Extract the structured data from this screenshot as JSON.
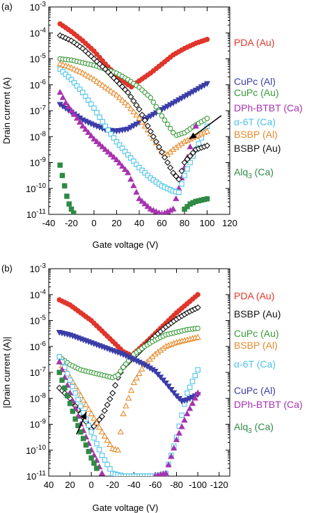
{
  "chart_data": [
    {
      "panel_label": "(a)",
      "type": "scatter",
      "xlabel": "Gate voltage (V)",
      "ylabel": "Drain current (A)",
      "xlim": [
        -40,
        120
      ],
      "xticks": [
        -40,
        -20,
        0,
        20,
        40,
        60,
        80,
        100,
        120
      ],
      "xtick_labels": [
        "-40",
        "-20",
        "0",
        "20",
        "40",
        "60",
        "80",
        "100",
        "120"
      ],
      "ylim_log10": [
        -11,
        -3
      ],
      "ytick_labels": [
        {
          "base": "10",
          "exp": "-3"
        },
        {
          "base": "10",
          "exp": "-4"
        },
        {
          "base": "10",
          "exp": "-5"
        },
        {
          "base": "10",
          "exp": "-6"
        },
        {
          "base": "10",
          "exp": "-7"
        },
        {
          "base": "10",
          "exp": "-8"
        },
        {
          "base": "10",
          "exp": "-9"
        },
        {
          "base": "10",
          "exp": "-10"
        },
        {
          "base": "10",
          "exp": "-11"
        }
      ],
      "series": [
        {
          "name": "PDA (Au)",
          "color": "#e0362b",
          "marker": "circle-filled",
          "x": [
            -30,
            -20,
            -10,
            0,
            10,
            20,
            30,
            33,
            40,
            50,
            60,
            70,
            80,
            90,
            100
          ],
          "log10_y": [
            -3.65,
            -3.95,
            -4.3,
            -4.7,
            -5.2,
            -5.65,
            -6.0,
            -6.08,
            -5.85,
            -5.55,
            -5.2,
            -4.85,
            -4.6,
            -4.4,
            -4.25
          ]
        },
        {
          "name": "CuPc (Al)",
          "color": "#3a3da8",
          "marker": "triangle-down-filled",
          "x": [
            -30,
            -20,
            -10,
            0,
            10,
            20,
            30,
            40,
            50,
            60,
            70,
            80,
            90,
            100
          ],
          "log10_y": [
            -6.75,
            -7.05,
            -7.35,
            -7.55,
            -7.72,
            -7.78,
            -7.7,
            -7.45,
            -7.2,
            -6.95,
            -6.7,
            -6.45,
            -6.2,
            -5.95
          ]
        },
        {
          "name": "CuPc (Au)",
          "color": "#3a9a3a",
          "marker": "circle-open",
          "x": [
            -30,
            -20,
            -10,
            0,
            10,
            20,
            30,
            40,
            50,
            60,
            70,
            73,
            80,
            90,
            100
          ],
          "log10_y": [
            -5.0,
            -5.05,
            -5.15,
            -5.25,
            -5.4,
            -5.55,
            -5.8,
            -6.1,
            -6.5,
            -7.2,
            -7.85,
            -7.95,
            -7.85,
            -7.55,
            -7.3
          ]
        },
        {
          "name": "DPh-BTBT (Ca)",
          "color": "#a832b0",
          "marker": "triangle-up-filled",
          "x": [
            -30,
            -25,
            -20,
            -10,
            0,
            10,
            20,
            30,
            40,
            50,
            60,
            70,
            80,
            90
          ],
          "log10_y": [
            -6.3,
            -6.7,
            -7.0,
            -7.6,
            -8.1,
            -8.5,
            -8.9,
            -9.4,
            -10.4,
            -10.8,
            -11.0,
            -10.8,
            -9.2,
            -7.6
          ]
        },
        {
          "name": "α-6T (Ca)",
          "color": "#4cc3e8",
          "marker": "square-open",
          "x": [
            -30,
            -20,
            -10,
            0,
            10,
            20,
            30,
            40,
            50,
            60,
            70,
            75,
            80,
            90,
            100
          ],
          "log10_y": [
            -5.4,
            -5.8,
            -6.3,
            -6.9,
            -7.6,
            -8.2,
            -8.7,
            -9.2,
            -9.6,
            -9.9,
            -10.1,
            -10.15,
            -9.5,
            -8.5,
            -7.6
          ]
        },
        {
          "name": "BSBP (Al)",
          "color": "#e58a2a",
          "marker": "triangle-up-open",
          "x": [
            -30,
            -20,
            -10,
            0,
            10,
            20,
            30,
            40,
            50,
            60,
            65,
            70,
            80,
            90,
            100
          ],
          "log10_y": [
            -5.2,
            -5.35,
            -5.55,
            -5.8,
            -6.1,
            -6.4,
            -6.8,
            -7.3,
            -7.9,
            -8.6,
            -8.7,
            -8.5,
            -8.2,
            -8.0,
            -7.8
          ]
        },
        {
          "name": "BSBP (Au)",
          "color": "#111111",
          "marker": "diamond-open",
          "x": [
            -30,
            -20,
            -10,
            0,
            10,
            20,
            30,
            40,
            50,
            60,
            70,
            75,
            80,
            90,
            100
          ],
          "log10_y": [
            -4.1,
            -4.3,
            -4.6,
            -5.0,
            -5.4,
            -5.85,
            -6.3,
            -6.95,
            -7.8,
            -8.6,
            -9.4,
            -9.65,
            -9.0,
            -8.5,
            -8.35
          ]
        },
        {
          "name": "Alq",
          "name_sub": "3",
          "name_tail": " (Ca)",
          "color": "#2f8a45",
          "marker": "square-filled",
          "x": [
            -30,
            -28,
            -26,
            -24,
            -22,
            -20,
            -18,
            80,
            85,
            90,
            95,
            100
          ],
          "log10_y": [
            -9.1,
            -9.5,
            -9.9,
            -10.3,
            -10.6,
            -10.8,
            -10.95,
            -10.8,
            -10.6,
            -10.5,
            -10.45,
            -10.4
          ]
        }
      ],
      "annotation": {
        "type": "arrow",
        "points_to": "CuPc (Au)"
      }
    },
    {
      "panel_label": "(b)",
      "type": "scatter",
      "xlabel": "Gate voltage (V)",
      "ylabel": "|Drain current (A)|",
      "xlim": [
        40,
        -130
      ],
      "xticks": [
        40,
        20,
        0,
        -20,
        -40,
        -60,
        -80,
        -100,
        -120
      ],
      "xtick_labels": [
        "40",
        "20",
        "0",
        "-20",
        "-40",
        "-60",
        "-80",
        "-100",
        "-120"
      ],
      "ylim_log10": [
        -11,
        -3
      ],
      "ytick_labels": [
        {
          "base": "10",
          "exp": "-3"
        },
        {
          "base": "10",
          "exp": "-4"
        },
        {
          "base": "10",
          "exp": "-5"
        },
        {
          "base": "10",
          "exp": "-6"
        },
        {
          "base": "10",
          "exp": "-7"
        },
        {
          "base": "10",
          "exp": "-8"
        },
        {
          "base": "10",
          "exp": "-9"
        },
        {
          "base": "10",
          "exp": "-10"
        },
        {
          "base": "10",
          "exp": "-11"
        }
      ],
      "series": [
        {
          "name": "PDA (Au)",
          "color": "#e0362b",
          "marker": "circle-filled",
          "x": [
            30,
            20,
            10,
            0,
            -10,
            -20,
            -30,
            -38,
            -50,
            -60,
            -70,
            -80,
            -90,
            -100
          ],
          "log10_y": [
            -4.2,
            -4.4,
            -4.7,
            -5.0,
            -5.4,
            -5.8,
            -6.2,
            -6.35,
            -5.9,
            -5.5,
            -5.1,
            -4.7,
            -4.35,
            -4.0
          ]
        },
        {
          "name": "BSBP (Au)",
          "color": "#111111",
          "marker": "diamond-open",
          "x": [
            30,
            25,
            20,
            15,
            10,
            5,
            0,
            -10,
            -20,
            -25,
            -30,
            -40,
            -50,
            -60,
            -70,
            -80,
            -90,
            -100
          ],
          "log10_y": [
            -7.6,
            -7.8,
            -8.0,
            -8.3,
            -8.6,
            -8.9,
            -9.2,
            -8.7,
            -7.8,
            -7.2,
            -6.8,
            -6.4,
            -6.0,
            -5.6,
            -5.25,
            -4.95,
            -4.7,
            -4.5
          ]
        },
        {
          "name": "CuPc (Au)",
          "color": "#3a9a3a",
          "marker": "circle-open",
          "x": [
            30,
            20,
            10,
            0,
            -10,
            -20,
            -25,
            -30,
            -40,
            -50,
            -60,
            -70,
            -80,
            -90,
            -100
          ],
          "log10_y": [
            -6.4,
            -6.7,
            -6.9,
            -7.0,
            -7.1,
            -7.2,
            -7.1,
            -6.8,
            -6.3,
            -6.0,
            -5.75,
            -5.55,
            -5.45,
            -5.35,
            -5.3
          ]
        },
        {
          "name": "BSBP (Al)",
          "color": "#e58a2a",
          "marker": "triangle-up-open",
          "x": [
            30,
            20,
            10,
            0,
            -10,
            -20,
            -25,
            -30,
            -40,
            -50,
            -60,
            -70,
            -80,
            -90,
            -100
          ],
          "log10_y": [
            -6.6,
            -7.2,
            -7.9,
            -8.6,
            -9.3,
            -9.95,
            -10.0,
            -8.6,
            -7.4,
            -6.7,
            -6.3,
            -6.0,
            -5.85,
            -5.75,
            -5.65
          ]
        },
        {
          "name": "α-6T (Ca)",
          "color": "#4cc3e8",
          "marker": "square-open",
          "x": [
            30,
            25,
            20,
            15,
            10,
            5,
            0,
            -10,
            -20,
            -30,
            -40,
            -50,
            -60,
            -70,
            -80,
            -90,
            -100
          ],
          "log10_y": [
            -6.4,
            -6.8,
            -7.3,
            -7.8,
            -8.3,
            -8.8,
            -9.3,
            -10.2,
            -10.9,
            -11.0,
            -11.0,
            -11.0,
            -11.0,
            -10.9,
            -9.5,
            -7.8,
            -6.9
          ]
        },
        {
          "name": "CuPc (Al)",
          "color": "#3a3da8",
          "marker": "triangle-down-filled",
          "x": [
            30,
            20,
            10,
            0,
            -10,
            -20,
            -30,
            -40,
            -50,
            -60,
            -70,
            -80,
            -85,
            -90,
            -100
          ],
          "log10_y": [
            -5.45,
            -5.55,
            -5.7,
            -5.85,
            -6.0,
            -6.15,
            -6.3,
            -6.5,
            -6.7,
            -6.95,
            -7.4,
            -7.9,
            -8.1,
            -8.05,
            -7.85
          ]
        },
        {
          "name": "DPh-BTBT (Ca)",
          "color": "#a832b0",
          "marker": "triangle-up-filled",
          "x": [
            30,
            25,
            20,
            15,
            10,
            5,
            0,
            -5,
            -10,
            -60,
            -70,
            -80,
            -90,
            -100
          ],
          "log10_y": [
            -6.6,
            -7.2,
            -7.8,
            -8.4,
            -9.0,
            -9.5,
            -10.0,
            -10.4,
            -10.9,
            -11.0,
            -10.9,
            -9.6,
            -8.6,
            -7.8
          ]
        },
        {
          "name": "Alq",
          "name_sub": "3",
          "name_tail": " (Ca)",
          "color": "#2f8a45",
          "marker": "square-filled",
          "x": [
            30,
            25,
            20,
            15,
            10,
            5,
            0,
            -5
          ],
          "log10_y": [
            -7.0,
            -7.6,
            -8.2,
            -8.8,
            -9.3,
            -9.8,
            -10.3,
            -10.7
          ]
        }
      ],
      "annotation": {
        "type": "arrow",
        "points_to": "Alq3 (Ca)"
      }
    }
  ]
}
